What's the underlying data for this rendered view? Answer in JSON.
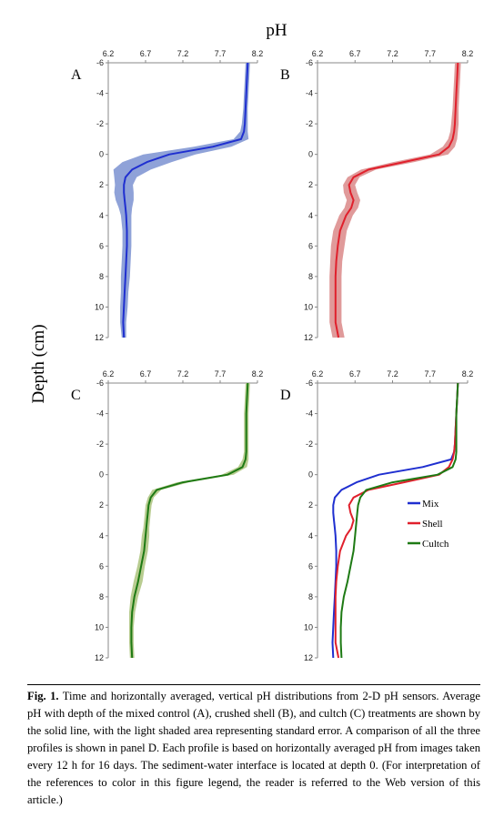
{
  "figure": {
    "x_title": "pH",
    "y_title": "Depth (cm)",
    "caption_label": "Fig. 1.",
    "caption_text": "Time and horizontally averaged, vertical pH distributions from 2-D pH sensors. Average pH with depth of the mixed control (A), crushed shell (B), and cultch (C) treatments are shown by the solid line, with the light shaded area representing standard error. A comparison of all the three profiles is shown in panel D. Each profile is based on horizontally averaged pH from images taken every 12 h for 16 days. The sediment-water interface is located at depth 0. (For interpretation of the references to color in this figure legend, the reader is referred to the Web version of this article.)"
  },
  "colors": {
    "mix": "#1f2fd0",
    "shell": "#e0202c",
    "cultch": "#1e7a14",
    "mix_band": "#8fa2d8",
    "shell_band": "#e09a9a",
    "cultch_band": "#b8cc90"
  },
  "chart_data": {
    "type": "line",
    "x_axis": {
      "label": "pH",
      "range": [
        6.2,
        8.2
      ],
      "ticks": [
        6.2,
        6.7,
        7.2,
        7.7,
        8.2
      ]
    },
    "y_axis": {
      "label": "Depth (cm)",
      "range": [
        -6,
        12
      ],
      "ticks": [
        -6,
        -4,
        -2,
        0,
        2,
        4,
        6,
        8,
        10,
        12
      ],
      "inverted": true
    },
    "depth": [
      -6,
      -5,
      -4,
      -3,
      -2,
      -1.5,
      -1,
      -0.5,
      0,
      0.5,
      1,
      1.5,
      2,
      2.5,
      3,
      3.5,
      4,
      5,
      6,
      7,
      8,
      9,
      10,
      11,
      12
    ],
    "panels": [
      {
        "letter": "A",
        "series": [
          {
            "name": "Mix",
            "color_key": "mix",
            "band_key": "mix_band",
            "ph": [
              8.07,
              8.06,
              8.05,
              8.04,
              8.03,
              8.02,
              7.98,
              7.6,
              7.02,
              6.72,
              6.52,
              6.43,
              6.41,
              6.41,
              6.42,
              6.43,
              6.44,
              6.45,
              6.45,
              6.44,
              6.43,
              6.42,
              6.41,
              6.4,
              6.41
            ],
            "se": [
              0.03,
              0.03,
              0.03,
              0.03,
              0.04,
              0.05,
              0.1,
              0.25,
              0.35,
              0.33,
              0.25,
              0.15,
              0.12,
              0.13,
              0.12,
              0.09,
              0.07,
              0.06,
              0.06,
              0.06,
              0.06,
              0.05,
              0.05,
              0.04,
              0.03
            ]
          }
        ]
      },
      {
        "letter": "B",
        "series": [
          {
            "name": "Shell",
            "color_key": "shell",
            "band_key": "shell_band",
            "ph": [
              8.07,
              8.06,
              8.05,
              8.04,
              8.03,
              8.02,
              8.0,
              7.95,
              7.82,
              7.35,
              6.88,
              6.68,
              6.62,
              6.64,
              6.68,
              6.65,
              6.58,
              6.5,
              6.47,
              6.45,
              6.44,
              6.44,
              6.44,
              6.44,
              6.48
            ],
            "se": [
              0.04,
              0.04,
              0.04,
              0.04,
              0.05,
              0.05,
              0.06,
              0.08,
              0.12,
              0.14,
              0.1,
              0.08,
              0.08,
              0.09,
              0.09,
              0.09,
              0.09,
              0.09,
              0.09,
              0.08,
              0.08,
              0.08,
              0.08,
              0.08,
              0.08
            ]
          }
        ]
      },
      {
        "letter": "C",
        "series": [
          {
            "name": "Cultch",
            "color_key": "cultch",
            "band_key": "cultch_band",
            "ph": [
              8.07,
              8.06,
              8.05,
              8.05,
              8.05,
              8.05,
              8.04,
              8.0,
              7.8,
              7.2,
              6.85,
              6.77,
              6.74,
              6.73,
              6.72,
              6.71,
              6.7,
              6.68,
              6.64,
              6.6,
              6.55,
              6.52,
              6.51,
              6.51,
              6.52
            ],
            "se": [
              0.03,
              0.03,
              0.03,
              0.03,
              0.03,
              0.03,
              0.04,
              0.06,
              0.08,
              0.08,
              0.06,
              0.04,
              0.04,
              0.04,
              0.04,
              0.04,
              0.05,
              0.05,
              0.05,
              0.06,
              0.05,
              0.04,
              0.03,
              0.03,
              0.03
            ]
          }
        ]
      },
      {
        "letter": "D",
        "legend": "right",
        "series": [
          {
            "name": "Mix",
            "color_key": "mix",
            "ph": [
              8.07,
              8.06,
              8.05,
              8.04,
              8.03,
              8.02,
              7.98,
              7.6,
              7.02,
              6.72,
              6.52,
              6.43,
              6.41,
              6.41,
              6.42,
              6.43,
              6.44,
              6.45,
              6.45,
              6.44,
              6.43,
              6.42,
              6.41,
              6.4,
              6.41
            ]
          },
          {
            "name": "Shell",
            "color_key": "shell",
            "ph": [
              8.07,
              8.06,
              8.05,
              8.04,
              8.03,
              8.02,
              8.0,
              7.95,
              7.82,
              7.35,
              6.88,
              6.68,
              6.62,
              6.64,
              6.68,
              6.65,
              6.58,
              6.5,
              6.47,
              6.45,
              6.44,
              6.44,
              6.44,
              6.44,
              6.48
            ]
          },
          {
            "name": "Cultch",
            "color_key": "cultch",
            "ph": [
              8.07,
              8.06,
              8.05,
              8.05,
              8.05,
              8.05,
              8.04,
              8.0,
              7.8,
              7.2,
              6.85,
              6.77,
              6.74,
              6.73,
              6.72,
              6.71,
              6.7,
              6.68,
              6.64,
              6.6,
              6.55,
              6.52,
              6.51,
              6.51,
              6.52
            ]
          }
        ]
      }
    ]
  }
}
